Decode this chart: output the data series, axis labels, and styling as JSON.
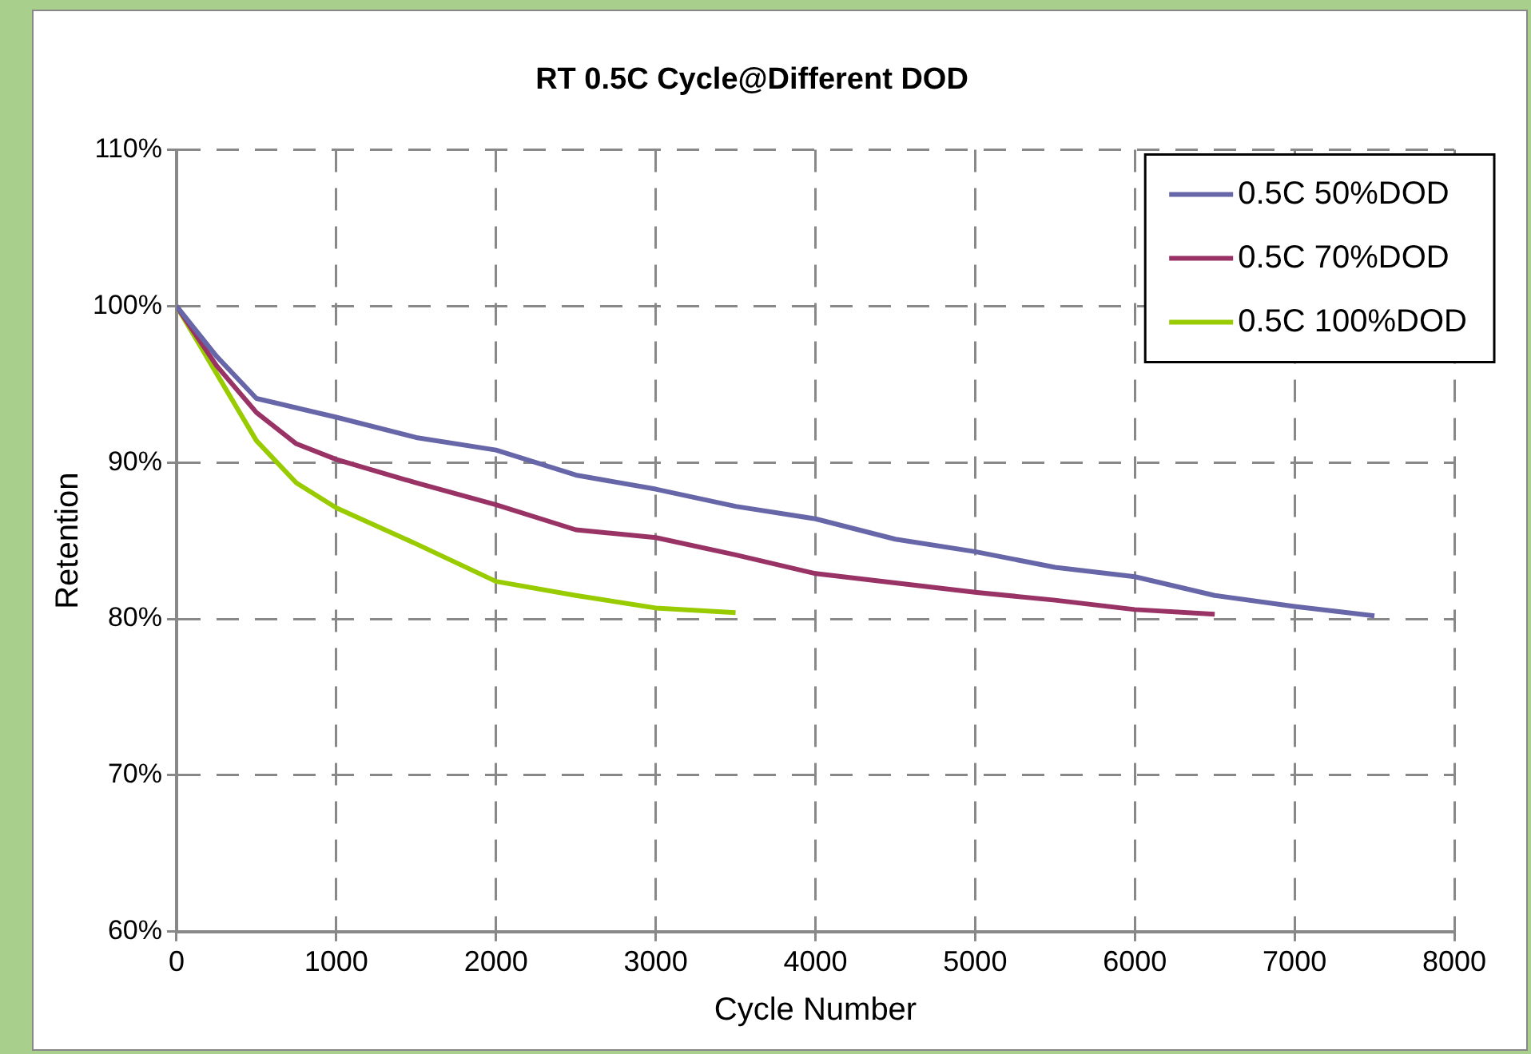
{
  "chart_data": {
    "type": "line",
    "title": "RT 0.5C Cycle@Different DOD",
    "xlabel": "Cycle Number",
    "ylabel": "Retention",
    "xlim": [
      0,
      8000
    ],
    "xticks": [
      0,
      1000,
      2000,
      3000,
      4000,
      5000,
      6000,
      7000,
      8000
    ],
    "ylim": [
      60,
      110
    ],
    "yticks": [
      {
        "value": 60,
        "label": "60%"
      },
      {
        "value": 70,
        "label": "70%"
      },
      {
        "value": 80,
        "label": "80%"
      },
      {
        "value": 90,
        "label": "90%"
      },
      {
        "value": 100,
        "label": "100%"
      },
      {
        "value": 110,
        "label": "110%"
      }
    ],
    "grid": true,
    "legend": "top right",
    "marker": "none",
    "line_style": "solid",
    "series": [
      {
        "name": "0.5C 50%DOD",
        "color": "#6666a8",
        "x": [
          0,
          250,
          500,
          750,
          1000,
          1500,
          2000,
          2500,
          3000,
          3500,
          4000,
          4500,
          5000,
          5500,
          6000,
          6500,
          7000,
          7500
        ],
        "values": [
          100,
          96.8,
          94.1,
          93.5,
          92.9,
          91.6,
          90.8,
          89.2,
          88.3,
          87.2,
          86.4,
          85.1,
          84.3,
          83.3,
          82.7,
          81.5,
          80.8,
          80.2
        ]
      },
      {
        "name": "0.5C 70%DOD",
        "color": "#993366",
        "x": [
          0,
          250,
          500,
          750,
          1000,
          1500,
          2000,
          2500,
          3000,
          3500,
          4000,
          4500,
          5000,
          5500,
          6000,
          6500
        ],
        "values": [
          100,
          96.2,
          93.2,
          91.2,
          90.2,
          88.7,
          87.3,
          85.7,
          85.2,
          84.1,
          82.9,
          82.3,
          81.7,
          81.2,
          80.6,
          80.3
        ]
      },
      {
        "name": "0.5C 100%DOD",
        "color": "#99cc00",
        "x": [
          0,
          250,
          500,
          750,
          1000,
          1500,
          2000,
          2500,
          3000,
          3500
        ],
        "values": [
          100,
          95.7,
          91.4,
          88.7,
          87.1,
          84.8,
          82.4,
          81.5,
          80.7,
          80.4
        ]
      }
    ]
  }
}
